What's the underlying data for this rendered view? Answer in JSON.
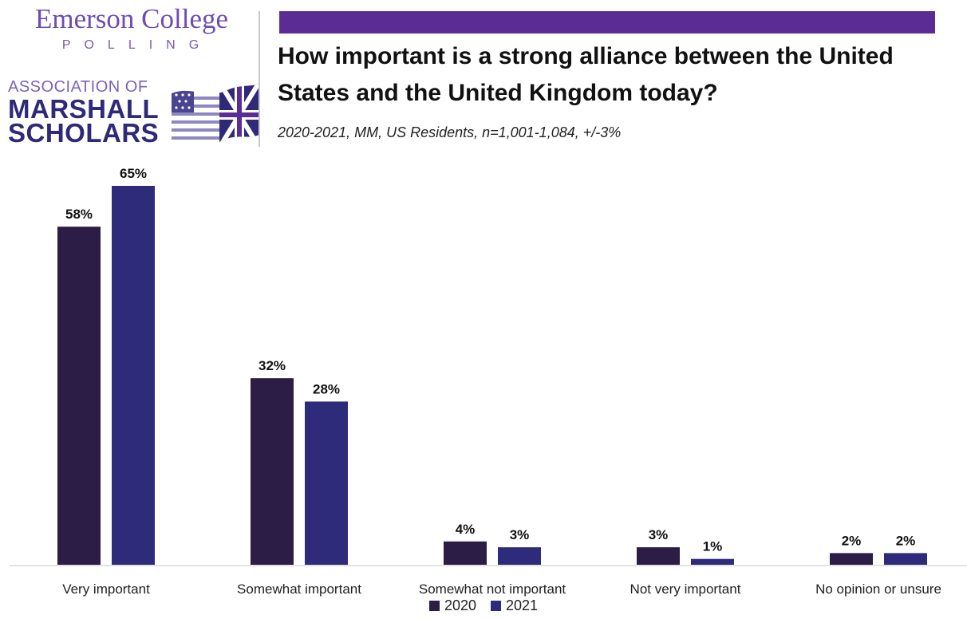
{
  "logos": {
    "emerson_name": "Emerson College",
    "emerson_sub": "POLLING",
    "marshall_line1": "ASSOCIATION OF",
    "marshall_line2": "MARSHALL",
    "marshall_line3": "SCHOLARS"
  },
  "colors": {
    "band": "#5b2d94",
    "series_2020": "#2b1d45",
    "series_2021": "#2e2c7a"
  },
  "chart_data": {
    "type": "bar",
    "title": "How important is a strong alliance between the United States and the United Kingdom today?",
    "subtitle": "2020-2021,  MM, US Residents, n=1,001-1,084, +/-3%",
    "categories": [
      "Very important",
      "Somewhat important",
      "Somewhat not important",
      "Not very important",
      "No opinion or unsure"
    ],
    "series": [
      {
        "name": "2020",
        "values": [
          58,
          32,
          4,
          3,
          2
        ],
        "labels": [
          "58%",
          "32%",
          "4%",
          "3%",
          "2%"
        ],
        "color": "#2b1d45"
      },
      {
        "name": "2021",
        "values": [
          65,
          28,
          3,
          1,
          2
        ],
        "labels": [
          "65%",
          "28%",
          "3%",
          "1%",
          "2%"
        ],
        "color": "#2e2c7a"
      }
    ],
    "ylim": [
      0,
      65
    ],
    "grid": false,
    "legend": "bottom"
  }
}
